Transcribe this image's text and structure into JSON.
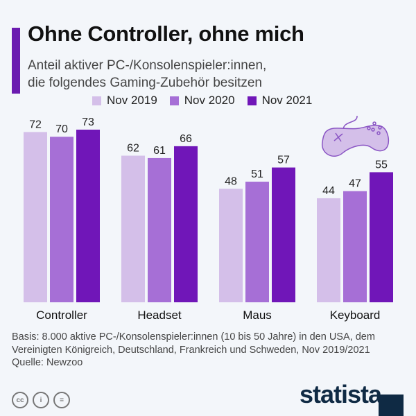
{
  "header": {
    "title": "Ohne Controller, ohne mich",
    "subtitle_lines": [
      "Anteil aktiver PC-/Konsolenspieler:innen,",
      "die folgendes Gaming-Zubehör besitzen"
    ]
  },
  "chart_data": {
    "type": "bar",
    "title": "Ohne Controller, ohne mich",
    "subtitle": "Anteil aktiver PC-/Konsolenspieler:innen, die folgendes Gaming-Zubehör besitzen",
    "categories": [
      "Controller",
      "Headset",
      "Maus",
      "Keyboard"
    ],
    "series": [
      {
        "name": "Nov 2019",
        "color": "#d4bfe9",
        "values": [
          72,
          62,
          48,
          44
        ]
      },
      {
        "name": "Nov 2020",
        "color": "#a66fd6",
        "values": [
          70,
          61,
          51,
          47
        ]
      },
      {
        "name": "Nov 2021",
        "color": "#7016b8",
        "values": [
          73,
          66,
          57,
          55
        ]
      }
    ],
    "ylim": [
      0,
      73
    ],
    "grid": false,
    "legend_position": "top",
    "data_labels": true
  },
  "footer": {
    "basis": "Basis: 8.000 aktive PC-/Konsolenspieler:innen (10 bis 50 Jahre) in den USA, dem Vereinigten Königreich, Deutschland, Frankreich und Schweden, Nov 2019/2021",
    "source": "Quelle: Newzoo",
    "license_icons": [
      "cc-icon",
      "by-icon",
      "nd-icon"
    ],
    "logo": "statista"
  },
  "decor": {
    "icon": "gamepad-icon",
    "icon_color": "#d4bfe9"
  }
}
